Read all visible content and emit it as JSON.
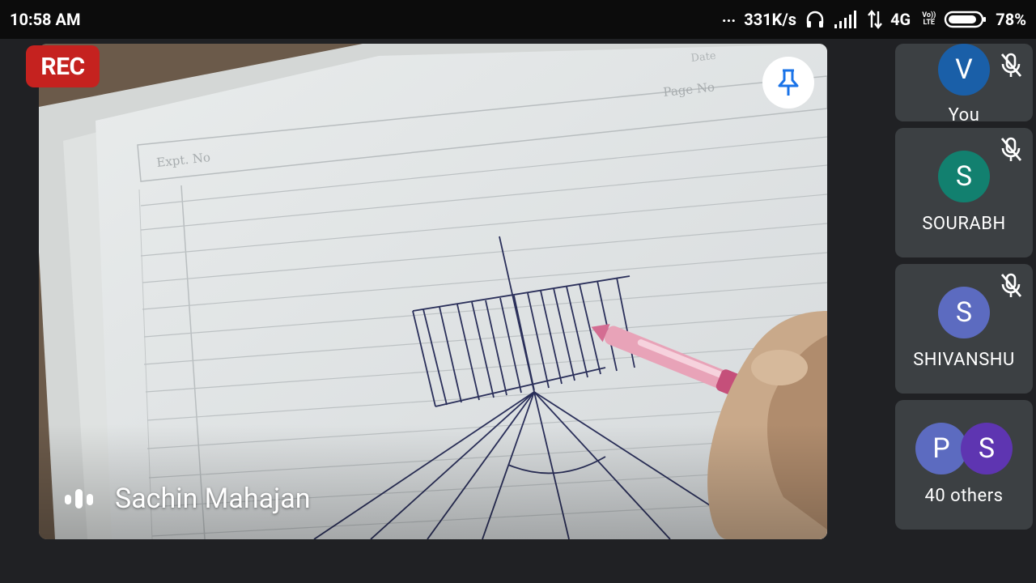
{
  "status_bar": {
    "time": "10:58 AM",
    "dots": "...",
    "speed": "331K/s",
    "network": "4G",
    "volte_top": "Vo))",
    "volte_bottom": "LTE",
    "battery": "78%",
    "icons": [
      "headset-icon",
      "signal-icon",
      "data-arrows-icon",
      "battery-icon"
    ]
  },
  "main_video": {
    "rec_label": "REC",
    "speaker_name": "Sachin Mahajan",
    "paper_labels": {
      "date": "Date",
      "page_no": "Page No",
      "expt_no": "Expt. No"
    }
  },
  "participants": [
    {
      "initial": "V",
      "name": "You",
      "color": "#1a5fa8",
      "muted": true
    },
    {
      "initial": "S",
      "name": "SOURABH",
      "color": "#12806f",
      "muted": true
    },
    {
      "initial": "S",
      "name": "SHIVANSHU",
      "color": "#5c6bc0",
      "muted": true
    }
  ],
  "others": {
    "initials": [
      "P",
      "S"
    ],
    "colors": [
      "#5c6bc0",
      "#5e35b1"
    ],
    "label": "40 others"
  }
}
